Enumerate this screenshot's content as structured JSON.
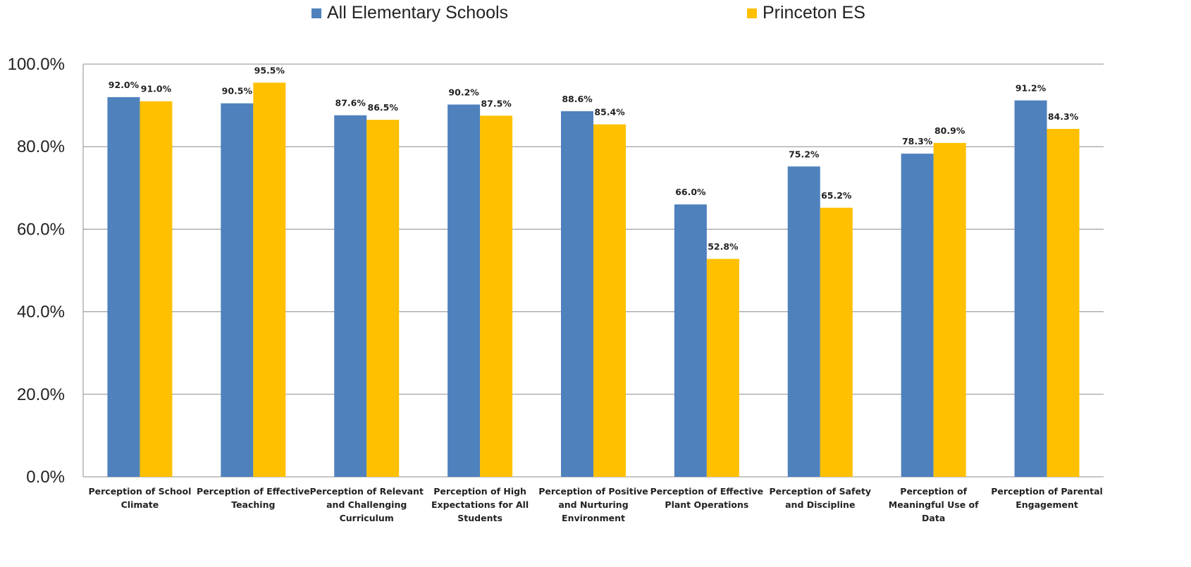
{
  "chart_data": {
    "type": "bar",
    "categories": [
      [
        "Perception of School",
        "Climate"
      ],
      [
        "Perception of Effective",
        "Teaching"
      ],
      [
        "Perception of Relevant",
        "and Challenging",
        "Curriculum"
      ],
      [
        "Perception of High",
        "Expectations for All",
        "Students"
      ],
      [
        "Perception of Positive",
        "and Nurturing",
        "Environment"
      ],
      [
        "Perception of Effective",
        "Plant Operations"
      ],
      [
        "Perception of Safety",
        "and Discipline"
      ],
      [
        "Perception of",
        "Meaningful Use of",
        "Data"
      ],
      [
        "Perception of Parental",
        "Engagement"
      ]
    ],
    "series": [
      {
        "name": "All Elementary Schools",
        "color": "#4F81BD",
        "values": [
          92.0,
          90.5,
          87.6,
          90.2,
          88.6,
          66.0,
          75.2,
          78.3,
          91.2
        ],
        "labels": [
          "92.0%",
          "90.5%",
          "87.6%",
          "90.2%",
          "88.6%",
          "66.0%",
          "75.2%",
          "78.3%",
          "91.2%"
        ]
      },
      {
        "name": "Princeton ES",
        "color": "#FFC000",
        "values": [
          91.0,
          95.5,
          86.5,
          87.5,
          85.4,
          52.8,
          65.2,
          80.9,
          84.3
        ],
        "labels": [
          "91.0%",
          "95.5%",
          "86.5%",
          "87.5%",
          "85.4%",
          "52.8%",
          "65.2%",
          "80.9%",
          "84.3%"
        ]
      }
    ],
    "ylim": [
      0,
      100
    ],
    "yticks": [
      0,
      20,
      40,
      60,
      80,
      100
    ],
    "ytick_labels": [
      "0.0%",
      "20.0%",
      "40.0%",
      "60.0%",
      "80.0%",
      "100.0%"
    ],
    "grid": true,
    "legend_position": "top"
  }
}
